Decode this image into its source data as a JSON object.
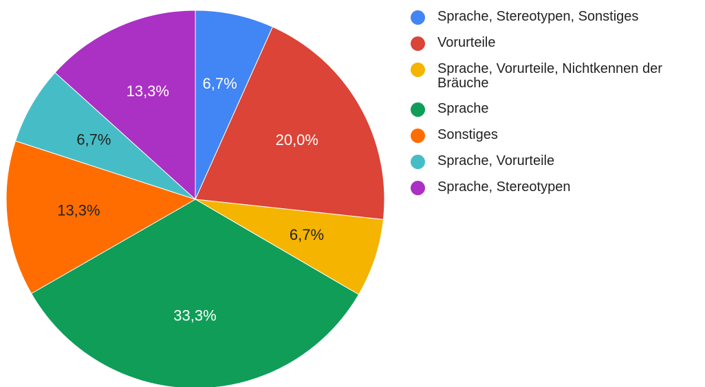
{
  "chart_data": {
    "type": "pie",
    "title": "",
    "legend_position": "right",
    "slices": [
      {
        "label": "Sprache, Stereotypen, Sonstiges",
        "value": 6.7,
        "value_label": "6,7%",
        "color": "#4285f4",
        "label_color": "#ffffff"
      },
      {
        "label": "Vorurteile",
        "value": 20.0,
        "value_label": "20,0%",
        "color": "#db4437",
        "label_color": "#ffffff"
      },
      {
        "label": "Sprache, Vorurteile, Nichtkennen der Bräuche",
        "value": 6.7,
        "value_label": "6,7%",
        "color": "#f4b400",
        "label_color": "#222222"
      },
      {
        "label": "Sprache",
        "value": 33.3,
        "value_label": "33,3%",
        "color": "#0f9d58",
        "label_color": "#ffffff"
      },
      {
        "label": "Sonstiges",
        "value": 13.3,
        "value_label": "13,3%",
        "color": "#ff6d00",
        "label_color": "#222222"
      },
      {
        "label": "Sprache, Vorurteile",
        "value": 6.7,
        "value_label": "6,7%",
        "color": "#46bdc6",
        "label_color": "#222222"
      },
      {
        "label": "Sprache, Stereotypen",
        "value": 13.3,
        "value_label": "13,3%",
        "color": "#ab30c4",
        "label_color": "#ffffff"
      }
    ]
  }
}
